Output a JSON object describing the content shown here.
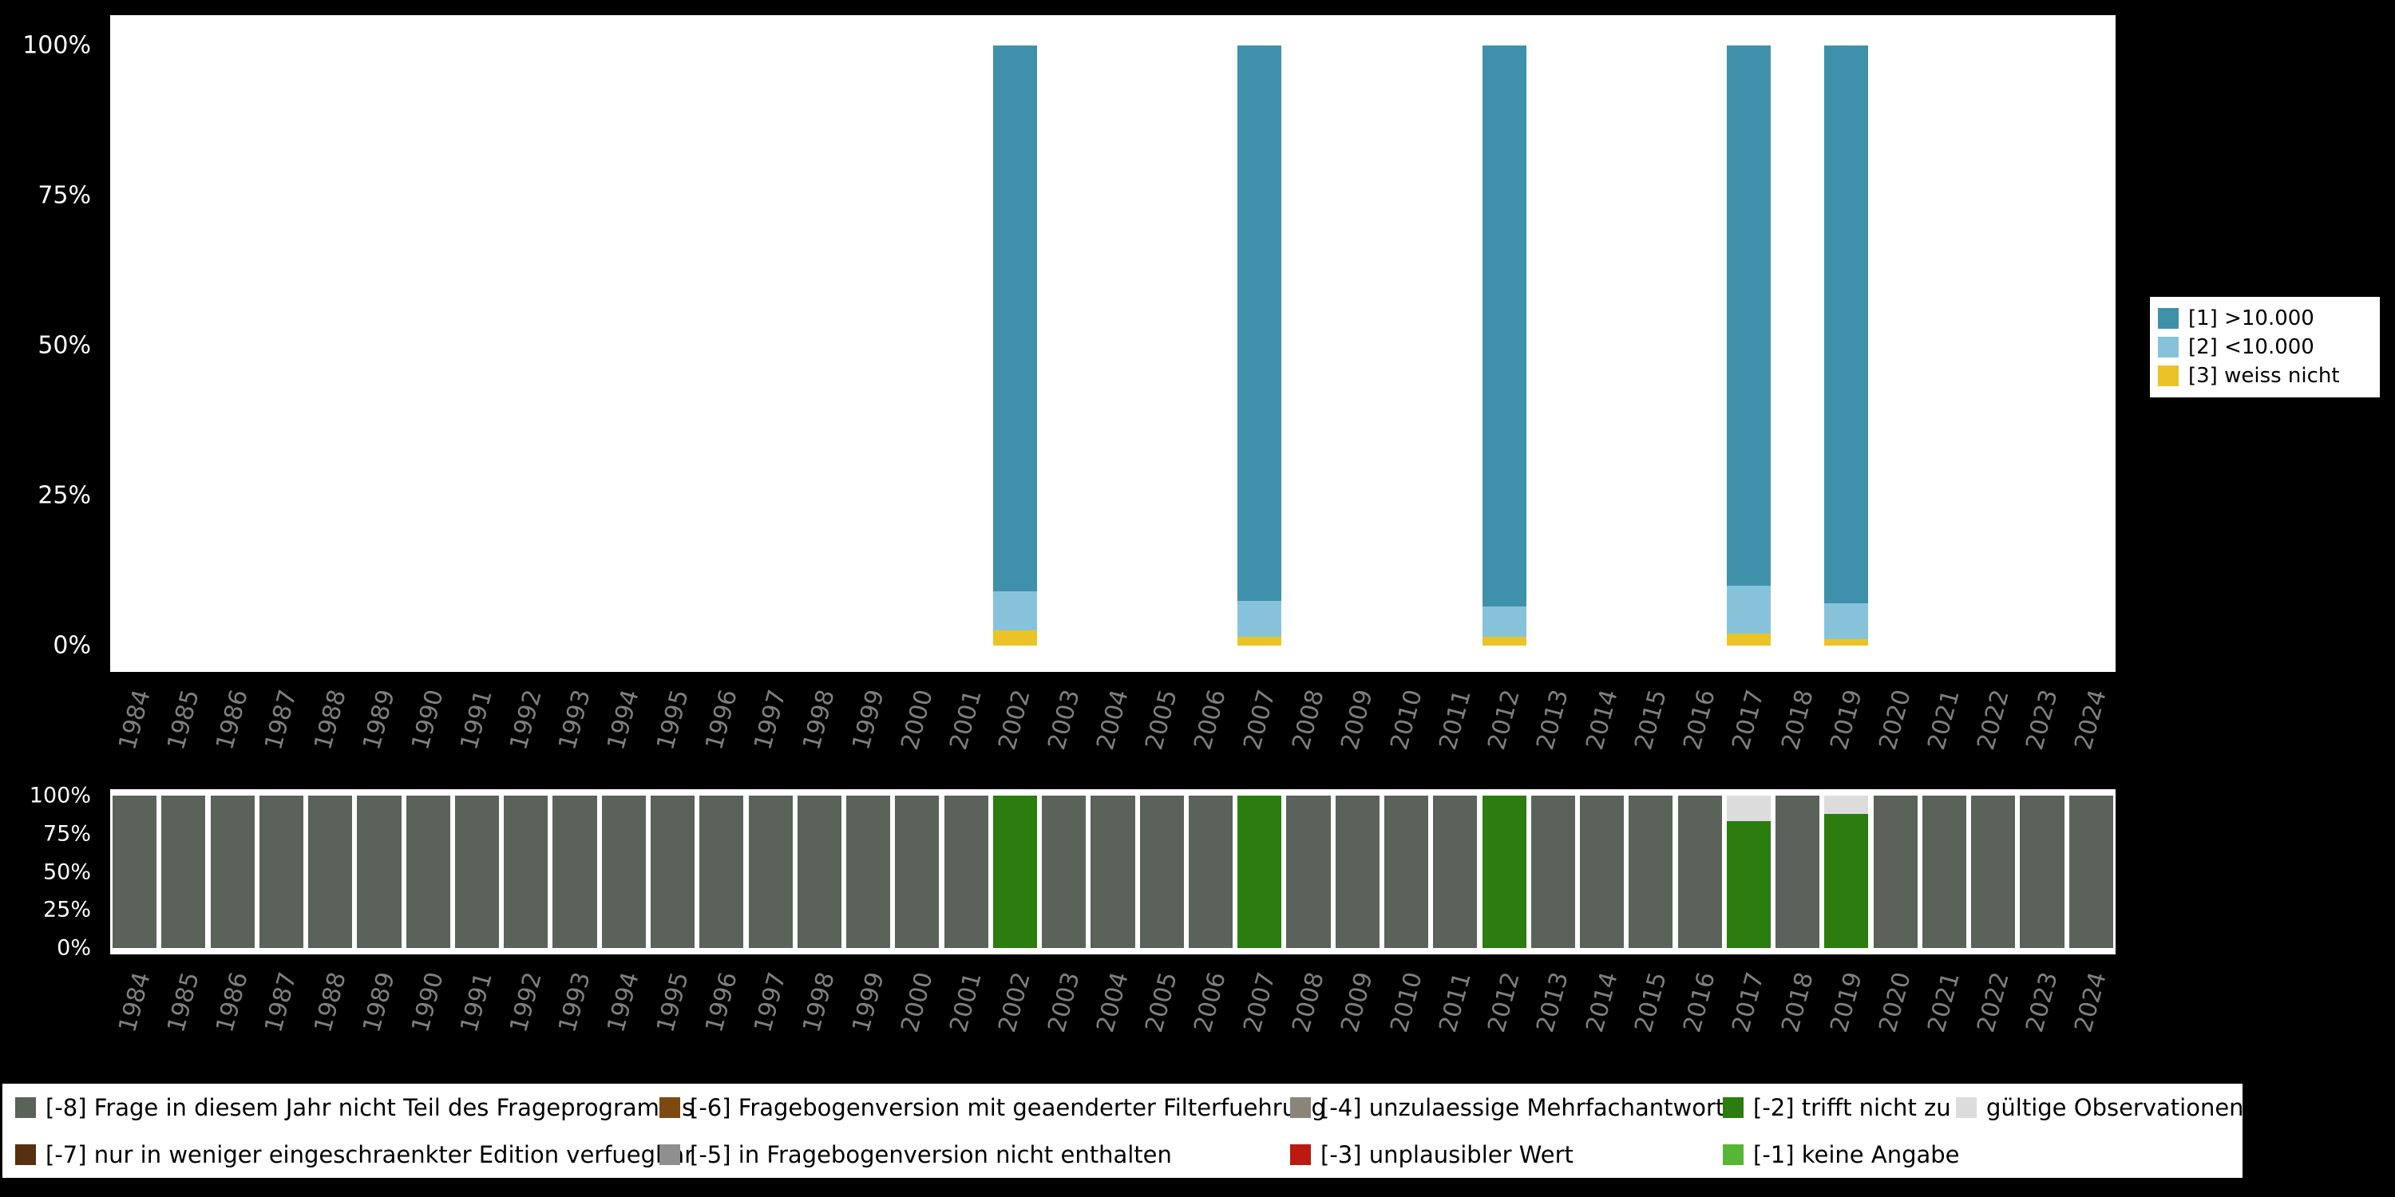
{
  "background": "#000000",
  "panel_color": "#ffffff",
  "axis": {
    "x_label_color": "#7f7f7f",
    "y_label_color": "#ffffff"
  },
  "top_legend": {
    "items": [
      {
        "label": "[1] >10.000",
        "color": "#3f90ab"
      },
      {
        "label": "[2] <10.000",
        "color": "#86c3da"
      },
      {
        "label": "[3] weiss nicht",
        "color": "#eac427"
      }
    ]
  },
  "bottom_legend": {
    "columns": [
      [
        {
          "label": "[-8] Frage in diesem Jahr nicht Teil des Frageprogramms",
          "color": "#5a625a"
        },
        {
          "label": "[-7] nur in weniger eingeschraenkter Edition verfuegbar",
          "color": "#553110"
        }
      ],
      [
        {
          "label": "[-6] Fragebogenversion mit geaenderter Filterfuehrung",
          "color": "#7c4a10"
        },
        {
          "label": "[-5] in Fragebogenversion nicht enthalten",
          "color": "#8f8f8f"
        }
      ],
      [
        {
          "label": "[-4] unzulaessige Mehrfachantwort",
          "color": "#8a8578"
        },
        {
          "label": "[-3] unplausibler Wert",
          "color": "#bb1a10"
        }
      ],
      [
        {
          "label": "[-2] trifft nicht zu",
          "color": "#2a7d0e"
        },
        {
          "label": "[-1] keine Angabe",
          "color": "#55b733"
        }
      ],
      [
        {
          "label": "gültige Observationen",
          "color": "#dcdcdc"
        }
      ]
    ]
  },
  "chart_data": [
    {
      "type": "bar",
      "stacked": true,
      "panel": "value-distribution",
      "title": "",
      "xlabel": "",
      "ylabel": "",
      "ylim": [
        0,
        100
      ],
      "grid": false,
      "legend_position": "right",
      "yticks": [
        "100%",
        "75%",
        "50%",
        "25%",
        "0%"
      ],
      "categories": [
        "1984",
        "1985",
        "1986",
        "1987",
        "1988",
        "1989",
        "1990",
        "1991",
        "1992",
        "1993",
        "1994",
        "1995",
        "1996",
        "1997",
        "1998",
        "1999",
        "2000",
        "2001",
        "2002",
        "2003",
        "2004",
        "2005",
        "2006",
        "2007",
        "2008",
        "2009",
        "2010",
        "2011",
        "2012",
        "2013",
        "2014",
        "2015",
        "2016",
        "2017",
        "2018",
        "2019",
        "2020",
        "2021",
        "2022",
        "2023",
        "2024"
      ],
      "series_bottom_to_top": [
        {
          "name": "[3] weiss nicht",
          "color": "#eac427",
          "values": {
            "2002": 2.5,
            "2007": 1.5,
            "2012": 1.5,
            "2017": 2,
            "2019": 1
          }
        },
        {
          "name": "[2] <10.000",
          "color": "#86c3da",
          "values": {
            "2002": 6.5,
            "2007": 6,
            "2012": 5,
            "2017": 8,
            "2019": 6
          }
        },
        {
          "name": "[1] >10.000",
          "color": "#3f90ab",
          "values": {
            "2002": 91,
            "2007": 92.5,
            "2012": 93.5,
            "2017": 90,
            "2019": 93
          }
        }
      ]
    },
    {
      "type": "bar",
      "stacked": true,
      "panel": "missing-distribution",
      "title": "",
      "xlabel": "",
      "ylabel": "",
      "ylim": [
        0,
        100
      ],
      "grid": false,
      "legend_position": "bottom",
      "yticks": [
        "100%",
        "75%",
        "50%",
        "25%",
        "0%"
      ],
      "categories": [
        "1984",
        "1985",
        "1986",
        "1987",
        "1988",
        "1989",
        "1990",
        "1991",
        "1992",
        "1993",
        "1994",
        "1995",
        "1996",
        "1997",
        "1998",
        "1999",
        "2000",
        "2001",
        "2002",
        "2003",
        "2004",
        "2005",
        "2006",
        "2007",
        "2008",
        "2009",
        "2010",
        "2011",
        "2012",
        "2013",
        "2014",
        "2015",
        "2016",
        "2017",
        "2018",
        "2019",
        "2020",
        "2021",
        "2022",
        "2023",
        "2024"
      ],
      "series_bottom_to_top": [
        {
          "name": "[-2] trifft nicht zu",
          "color": "#2a7d0e",
          "values": {
            "2002": 100,
            "2007": 100,
            "2012": 100,
            "2017": 83,
            "2019": 88
          }
        },
        {
          "name": "gültige Observationen",
          "color": "#dcdcdc",
          "values": {
            "2017": 17,
            "2019": 12
          }
        },
        {
          "name": "[-8] Frage in diesem Jahr nicht Teil des Frageprogramms",
          "color": "#5a625a",
          "values": {
            "default": 100,
            "2002": 0,
            "2007": 0,
            "2012": 0,
            "2017": 0,
            "2019": 0
          }
        }
      ]
    }
  ]
}
